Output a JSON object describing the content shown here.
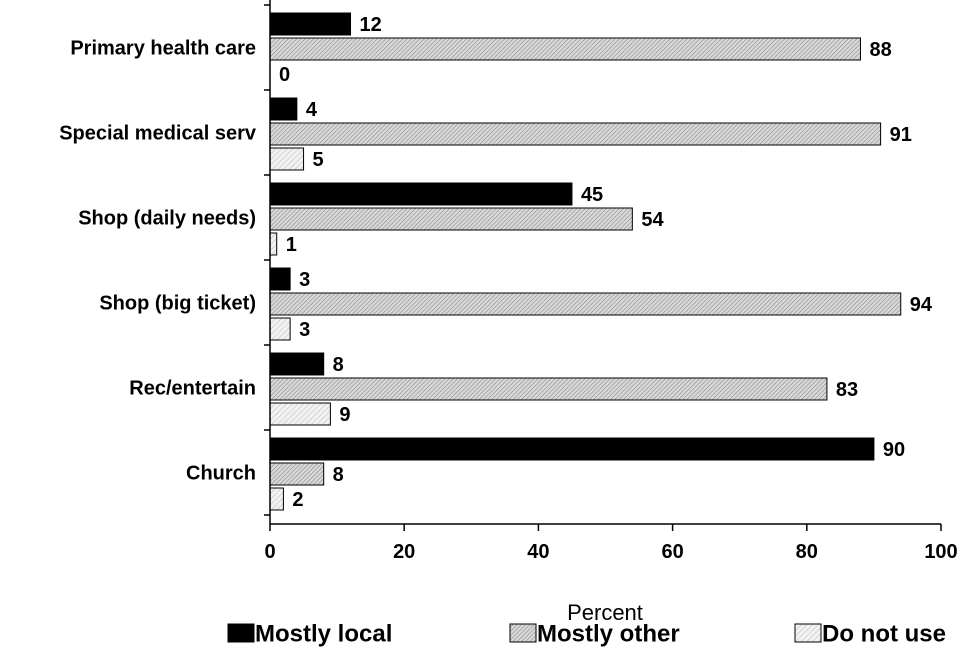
{
  "chart_data": {
    "type": "bar",
    "orientation": "horizontal",
    "categories": [
      "Primary health care",
      "Special medical serv",
      "Shop (daily needs)",
      "Shop (big ticket)",
      "Rec/entertain",
      "Church"
    ],
    "series": [
      {
        "name": "Mostly local",
        "values": [
          12,
          4,
          45,
          3,
          8,
          90
        ],
        "color": "#000000",
        "pattern": "solid"
      },
      {
        "name": "Mostly other",
        "values": [
          88,
          91,
          54,
          94,
          83,
          8
        ],
        "color": "#c8c8c8",
        "pattern": "dense-diagonal-hatch"
      },
      {
        "name": "Do not use",
        "values": [
          0,
          5,
          1,
          3,
          9,
          2
        ],
        "color": "#e6e6e6",
        "pattern": "light-diagonal-hatch"
      }
    ],
    "xlabel": "Percent",
    "ylabel": "",
    "xlim": [
      0,
      100
    ],
    "xticks": [
      "0",
      "20",
      "40",
      "60",
      "80",
      "100"
    ],
    "grid": false,
    "legend_position": "bottom",
    "data_labels": true
  }
}
